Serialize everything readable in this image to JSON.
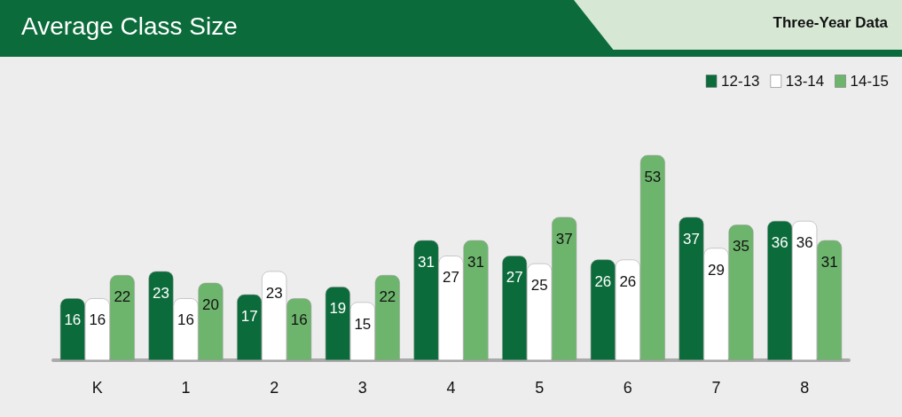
{
  "chart_data": {
    "type": "bar",
    "title": "Average Class Size",
    "subtitle": "Three-Year Data",
    "categories": [
      "K",
      "1",
      "2",
      "3",
      "4",
      "5",
      "6",
      "7",
      "8"
    ],
    "series": [
      {
        "name": "12-13",
        "color": "#0b6b3a",
        "values": [
          16,
          23,
          17,
          19,
          31,
          27,
          26,
          37,
          36
        ]
      },
      {
        "name": "13-14",
        "color": "#ffffff",
        "values": [
          16,
          16,
          23,
          15,
          27,
          25,
          26,
          29,
          36
        ]
      },
      {
        "name": "14-15",
        "color": "#6db56d",
        "values": [
          22,
          20,
          16,
          22,
          31,
          37,
          53,
          35,
          31
        ]
      }
    ],
    "data_labels": true,
    "legend": "top right"
  }
}
